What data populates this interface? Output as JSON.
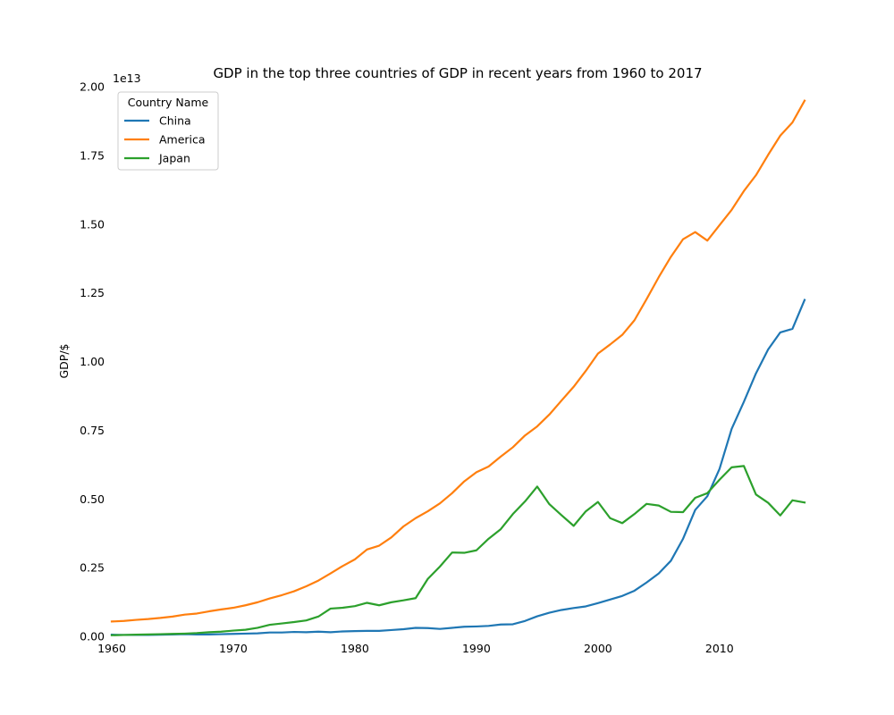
{
  "chart_data": {
    "type": "line",
    "title": "GDP in the top three countries of GDP in recent years from 1960 to 2017",
    "xlabel": "",
    "ylabel": "GDP/$",
    "y_multiplier_label": "1e13",
    "xlim": [
      1960,
      2017
    ],
    "ylim": [
      0,
      2.0
    ],
    "y_unit": "1e13 US$",
    "x_ticks": [
      "1960",
      "1970",
      "1980",
      "1990",
      "2000",
      "2010"
    ],
    "y_ticks": [
      "0.00",
      "0.25",
      "0.50",
      "0.75",
      "1.00",
      "1.25",
      "1.50",
      "1.75",
      "2.00"
    ],
    "legend_title": "Country Name",
    "legend_position": "top-left",
    "grid": false,
    "x": [
      1960,
      1961,
      1962,
      1963,
      1964,
      1965,
      1966,
      1967,
      1968,
      1969,
      1970,
      1971,
      1972,
      1973,
      1974,
      1975,
      1976,
      1977,
      1978,
      1979,
      1980,
      1981,
      1982,
      1983,
      1984,
      1985,
      1986,
      1987,
      1988,
      1989,
      1990,
      1991,
      1992,
      1993,
      1994,
      1995,
      1996,
      1997,
      1998,
      1999,
      2000,
      2001,
      2002,
      2003,
      2004,
      2005,
      2006,
      2007,
      2008,
      2009,
      2010,
      2011,
      2012,
      2013,
      2014,
      2015,
      2016,
      2017
    ],
    "series": [
      {
        "name": "China",
        "color": "#1f77b4",
        "values": [
          0.006,
          0.005,
          0.005,
          0.005,
          0.006,
          0.007,
          0.008,
          0.007,
          0.007,
          0.008,
          0.009,
          0.01,
          0.011,
          0.014,
          0.014,
          0.016,
          0.015,
          0.017,
          0.015,
          0.018,
          0.019,
          0.02,
          0.02,
          0.023,
          0.026,
          0.031,
          0.03,
          0.027,
          0.031,
          0.035,
          0.036,
          0.038,
          0.043,
          0.044,
          0.056,
          0.073,
          0.086,
          0.096,
          0.103,
          0.109,
          0.121,
          0.134,
          0.147,
          0.166,
          0.196,
          0.229,
          0.275,
          0.355,
          0.46,
          0.51,
          0.609,
          0.755,
          0.853,
          0.957,
          1.044,
          1.106,
          1.119,
          1.224
        ]
      },
      {
        "name": "America",
        "color": "#ff7f0e",
        "values": [
          0.054,
          0.056,
          0.06,
          0.063,
          0.067,
          0.072,
          0.079,
          0.083,
          0.091,
          0.098,
          0.104,
          0.113,
          0.124,
          0.138,
          0.15,
          0.164,
          0.182,
          0.203,
          0.229,
          0.256,
          0.28,
          0.316,
          0.33,
          0.36,
          0.4,
          0.43,
          0.455,
          0.484,
          0.521,
          0.564,
          0.597,
          0.618,
          0.654,
          0.688,
          0.731,
          0.764,
          0.807,
          0.858,
          0.908,
          0.966,
          1.029,
          1.062,
          1.097,
          1.15,
          1.227,
          1.307,
          1.381,
          1.445,
          1.471,
          1.44,
          1.496,
          1.552,
          1.62,
          1.678,
          1.752,
          1.822,
          1.87,
          1.949
        ]
      },
      {
        "name": "Japan",
        "color": "#2ca02c",
        "values": [
          0.004,
          0.005,
          0.006,
          0.007,
          0.008,
          0.009,
          0.01,
          0.012,
          0.015,
          0.017,
          0.021,
          0.024,
          0.031,
          0.042,
          0.047,
          0.052,
          0.058,
          0.072,
          0.101,
          0.104,
          0.11,
          0.122,
          0.113,
          0.124,
          0.131,
          0.139,
          0.209,
          0.254,
          0.305,
          0.304,
          0.313,
          0.355,
          0.39,
          0.445,
          0.491,
          0.545,
          0.481,
          0.441,
          0.402,
          0.455,
          0.489,
          0.43,
          0.412,
          0.445,
          0.482,
          0.476,
          0.453,
          0.452,
          0.504,
          0.521,
          0.57,
          0.615,
          0.62,
          0.516,
          0.486,
          0.44,
          0.495,
          0.487
        ]
      }
    ]
  }
}
